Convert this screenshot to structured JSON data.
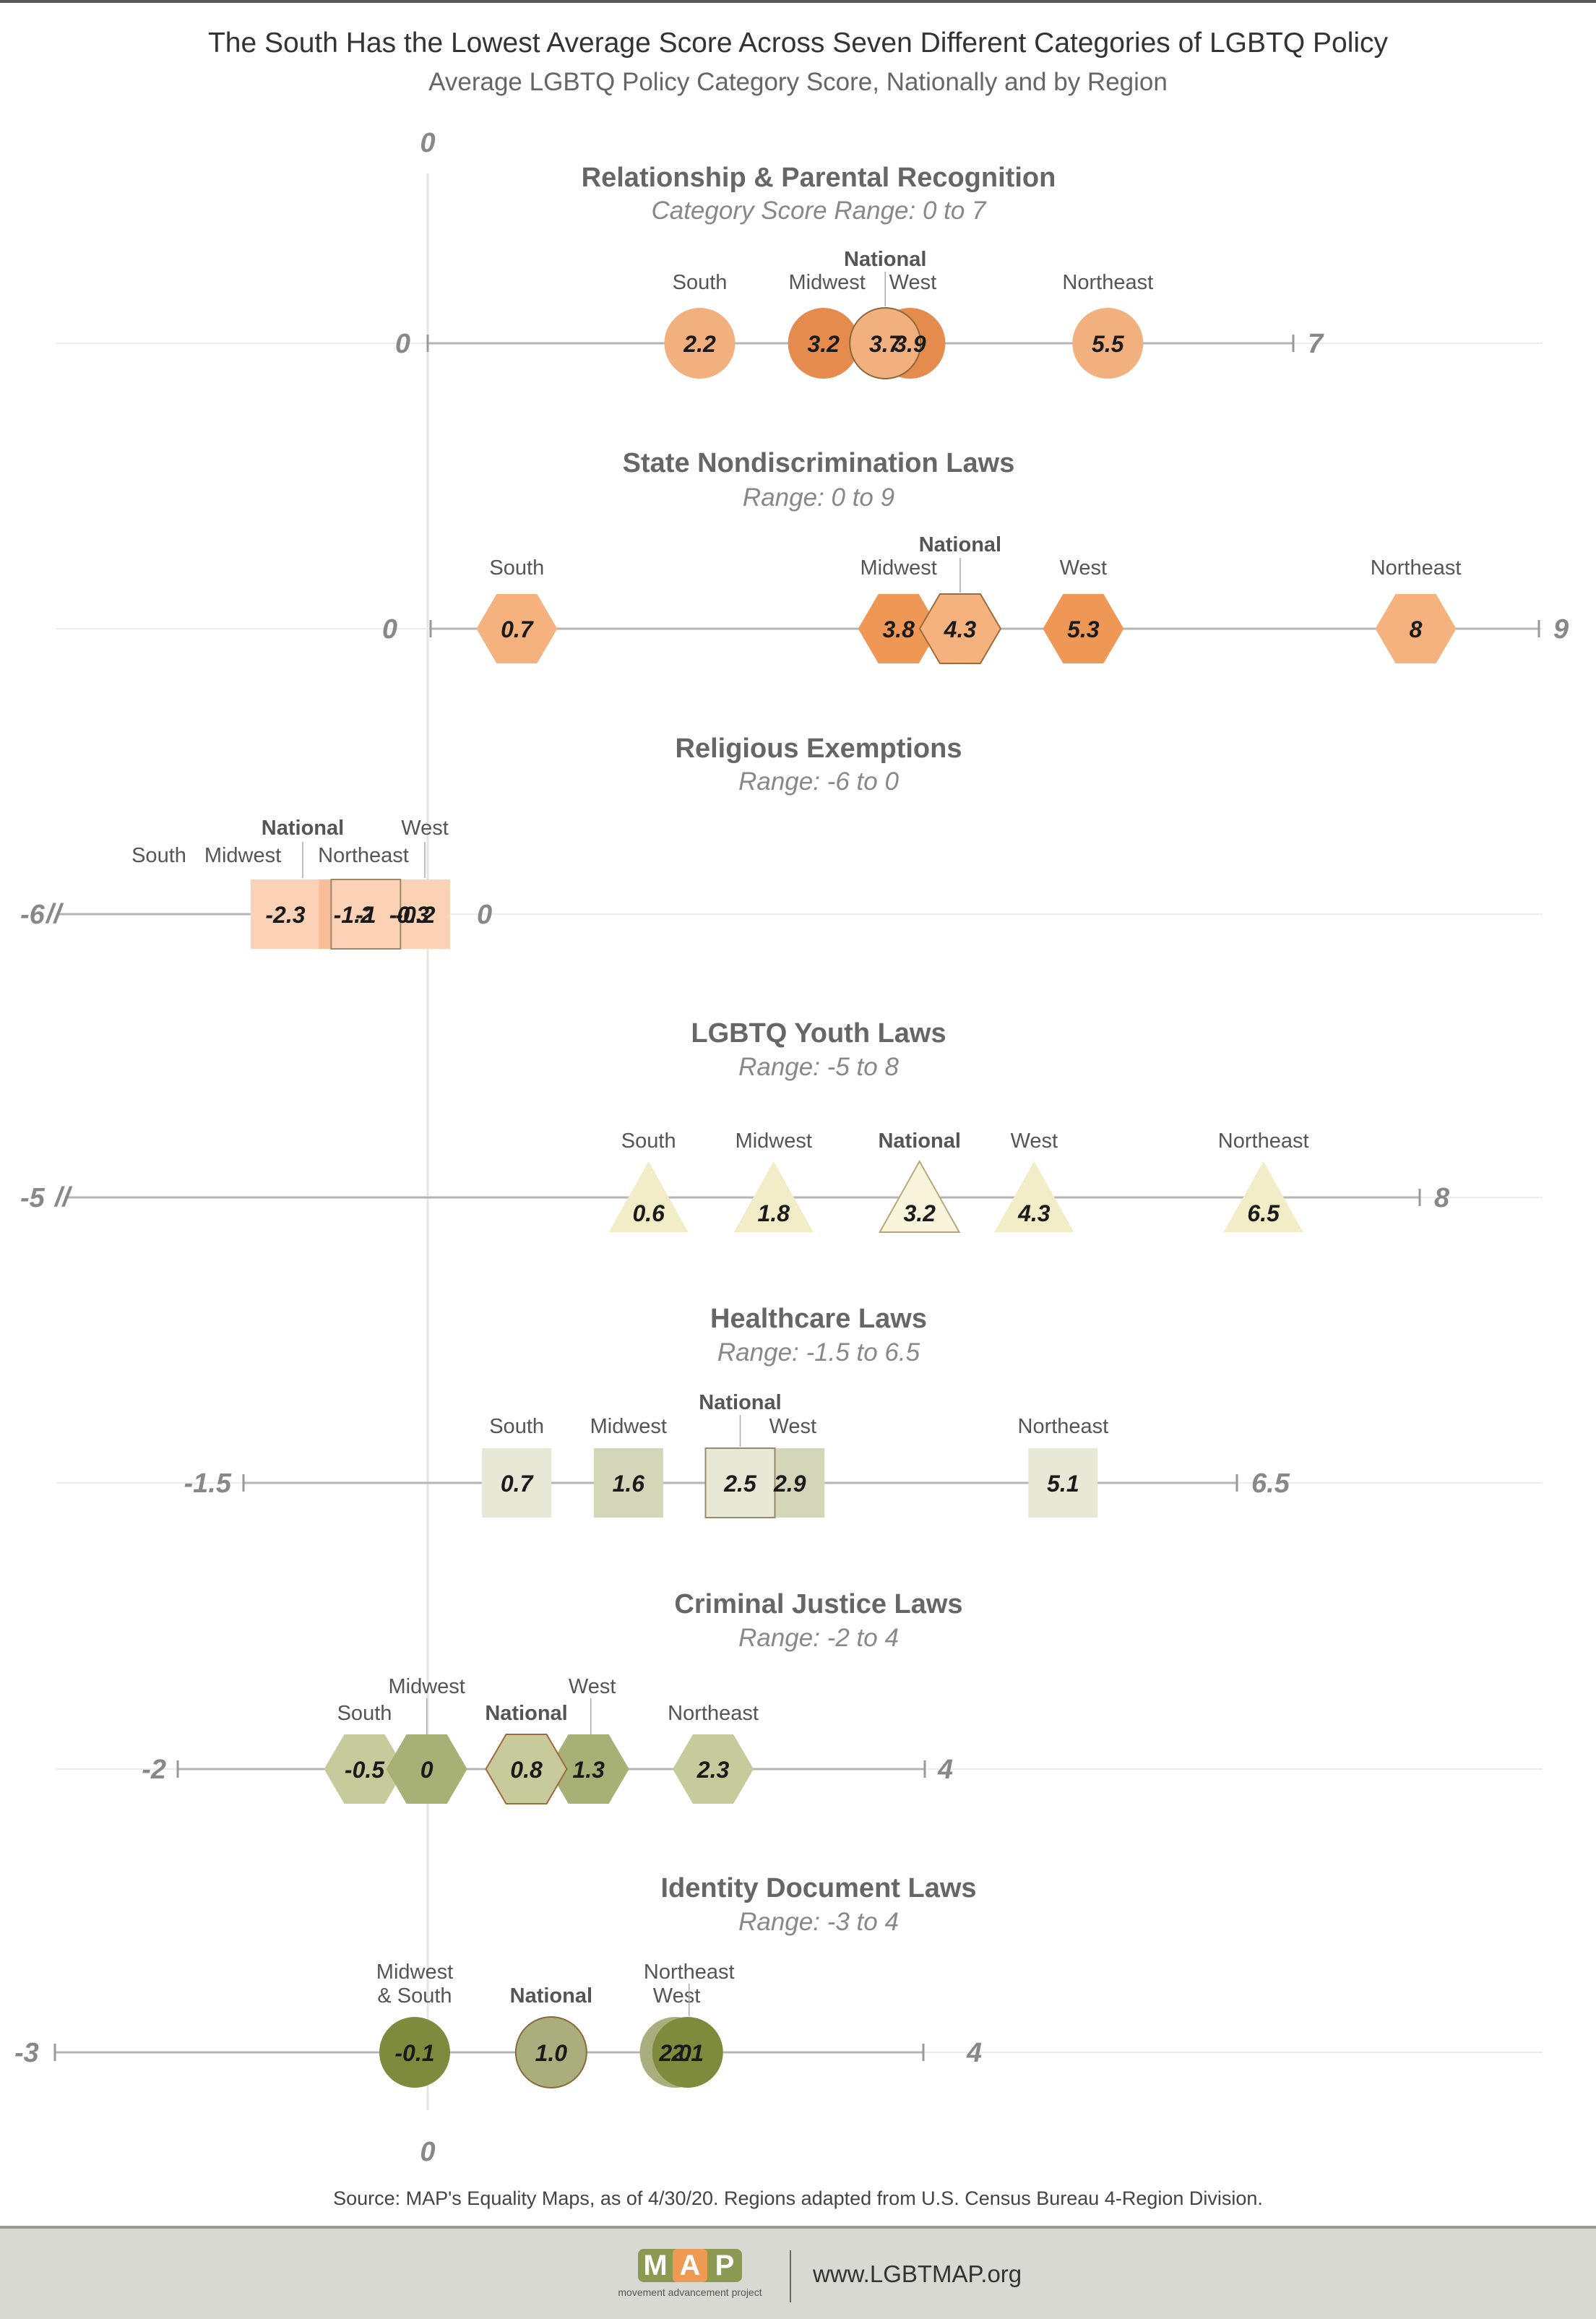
{
  "title": "The South Has the Lowest Average Score Across Seven Different Categories of LGBTQ Policy",
  "subtitle": "Average LGBTQ Policy Category Score, Nationally and by Region",
  "source": "Source: MAP's Equality Maps, as of 4/30/20. Regions adapted from U.S. Census Bureau 4-Region Division.",
  "footer": {
    "logo_text": "MAP",
    "logo_letters": [
      "M",
      "A",
      "P"
    ],
    "logo_tagline": "movement advancement project",
    "url": "www.LGBTMAP.org"
  },
  "zero_axis": {
    "top_label": "0",
    "bottom_label": "0"
  },
  "chart_data": [
    {
      "type": "dot",
      "title": "Relationship & Parental Recognition",
      "range_label": "Category Score Range: 0 to 7",
      "min": 0,
      "max": 7,
      "min_label": "0",
      "max_label": "7",
      "shape": "circle",
      "points": [
        {
          "region": "South",
          "value": 2.2,
          "value_label": "2.2",
          "color": "#f3b07f"
        },
        {
          "region": "Midwest",
          "value": 3.2,
          "value_label": "3.2",
          "color": "#e48b4d"
        },
        {
          "region": "National",
          "value": 3.7,
          "value_label": "3.7",
          "color": "#f3b07f"
        },
        {
          "region": "West",
          "value": 3.9,
          "value_label": "3.9",
          "color": "#e48b4d"
        },
        {
          "region": "Northeast",
          "value": 5.5,
          "value_label": "5.5",
          "color": "#f3b07f"
        }
      ]
    },
    {
      "type": "dot",
      "title": "State Nondiscrimination Laws",
      "range_label": "Range: 0 to 9",
      "min": 0,
      "max": 9,
      "min_label": "0",
      "max_label": "9",
      "shape": "hexagon",
      "points": [
        {
          "region": "South",
          "value": 0.7,
          "value_label": "0.7",
          "color": "#f6b27e"
        },
        {
          "region": "Midwest",
          "value": 3.8,
          "value_label": "3.8",
          "color": "#ef9755"
        },
        {
          "region": "National",
          "value": 4.3,
          "value_label": "4.3",
          "color": "#f6b27e"
        },
        {
          "region": "West",
          "value": 5.3,
          "value_label": "5.3",
          "color": "#ef9755"
        },
        {
          "region": "Northeast",
          "value": 8,
          "value_label": "8",
          "color": "#f6b27e"
        }
      ]
    },
    {
      "type": "dot",
      "title": "Religious Exemptions",
      "range_label": "Range: -6 to 0",
      "min": -6,
      "max": 0,
      "min_label": "-6",
      "max_label": "0",
      "shape": "square",
      "points": [
        {
          "region": "South",
          "value": -2.3,
          "value_label": "-2.3",
          "color": "#fbd2b5"
        },
        {
          "region": "Midwest",
          "value": -1.2,
          "value_label": "-1.2",
          "color": "#f9be98"
        },
        {
          "region": "National",
          "value": -1,
          "value_label": "-1",
          "color": "#fbd2b5"
        },
        {
          "region": "Northeast",
          "value": -0.3,
          "value_label": "-0.3",
          "color": "#f9be98"
        },
        {
          "region": "West",
          "value": -0.2,
          "value_label": "-0.2",
          "color": "#fbd2b5"
        }
      ]
    },
    {
      "type": "dot",
      "title": "LGBTQ Youth Laws",
      "range_label": "Range: -5 to 8",
      "min": -5,
      "max": 8,
      "min_label": "-5",
      "max_label": "8",
      "shape": "triangle",
      "points": [
        {
          "region": "South",
          "value": 0.6,
          "value_label": "0.6",
          "color": "#f2edc6"
        },
        {
          "region": "Midwest",
          "value": 1.8,
          "value_label": "1.8",
          "color": "#f2edc6"
        },
        {
          "region": "National",
          "value": 3.2,
          "value_label": "3.2",
          "color": "#f9f5dc"
        },
        {
          "region": "West",
          "value": 4.3,
          "value_label": "4.3",
          "color": "#f2edc6"
        },
        {
          "region": "Northeast",
          "value": 6.5,
          "value_label": "6.5",
          "color": "#f2edc6"
        }
      ]
    },
    {
      "type": "dot",
      "title": "Healthcare Laws",
      "range_label": "Range: -1.5 to 6.5",
      "min": -1.5,
      "max": 6.5,
      "min_label": "-1.5",
      "max_label": "6.5",
      "shape": "square",
      "points": [
        {
          "region": "South",
          "value": 0.7,
          "value_label": "0.7",
          "color": "#e8e8d6"
        },
        {
          "region": "Midwest",
          "value": 1.6,
          "value_label": "1.6",
          "color": "#d3d6b8"
        },
        {
          "region": "National",
          "value": 2.5,
          "value_label": "2.5",
          "color": "#e8e8d6"
        },
        {
          "region": "West",
          "value": 2.9,
          "value_label": "2.9",
          "color": "#d3d6b8"
        },
        {
          "region": "Northeast",
          "value": 5.1,
          "value_label": "5.1",
          "color": "#e8e8d6"
        }
      ]
    },
    {
      "type": "dot",
      "title": "Criminal Justice Laws",
      "range_label": "Range: -2 to 4",
      "min": -2,
      "max": 4,
      "min_label": "-2",
      "max_label": "4",
      "shape": "hexagon",
      "points": [
        {
          "region": "South",
          "value": -0.5,
          "value_label": "-0.5",
          "color": "#c7cb9c"
        },
        {
          "region": "Midwest",
          "value": 0,
          "value_label": "0",
          "color": "#a7b075"
        },
        {
          "region": "National",
          "value": 0.8,
          "value_label": "0.8",
          "color": "#c7cb9c"
        },
        {
          "region": "West",
          "value": 1.3,
          "value_label": "1.3",
          "color": "#a7b075"
        },
        {
          "region": "Northeast",
          "value": 2.3,
          "value_label": "2.3",
          "color": "#c7cb9c"
        }
      ]
    },
    {
      "type": "dot",
      "title": "Identity Document Laws",
      "range_label": "Range: -3 to 4",
      "min": -3,
      "max": 4,
      "min_label": "-3",
      "max_label": "4",
      "shape": "circle",
      "points": [
        {
          "region": "Midwest & South",
          "value": -0.1,
          "value_label": "-0.1",
          "color": "#7e8a3c"
        },
        {
          "region": "National",
          "value": 1.0,
          "value_label": "1.0",
          "color": "#a9ae7c"
        },
        {
          "region": "West",
          "value": 2.0,
          "value_label": "2.0",
          "color": "#a9ae7c"
        },
        {
          "region": "Northeast",
          "value": 2.1,
          "value_label": "2.1",
          "color": "#7e8a3c"
        }
      ]
    }
  ]
}
